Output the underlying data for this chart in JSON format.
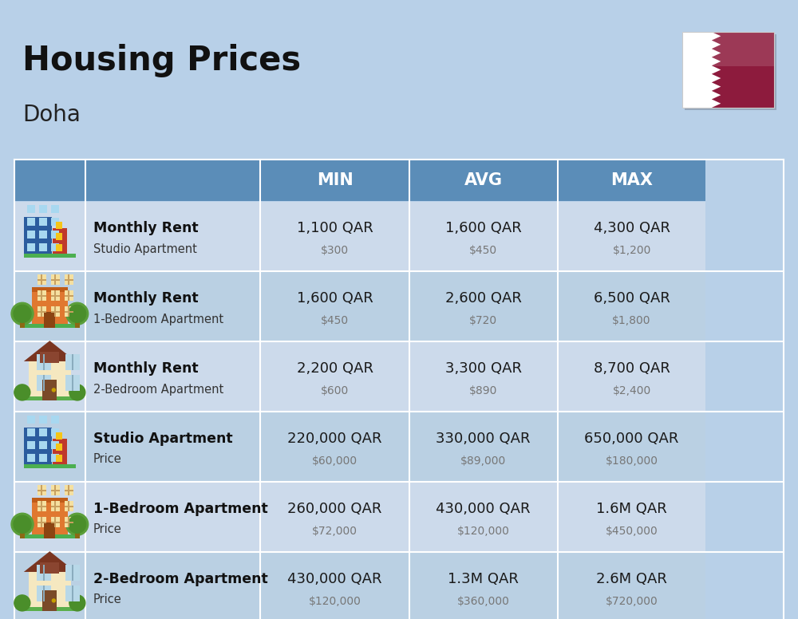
{
  "title": "Housing Prices",
  "subtitle": "Doha",
  "bg_color": "#b8d0e8",
  "header_bg": "#5b8db8",
  "header_text": "#ffffff",
  "row_colors": [
    "#ccdaeb",
    "#bad0e3"
  ],
  "col_header": [
    "",
    "",
    "MIN",
    "AVG",
    "MAX"
  ],
  "rows": [
    {
      "icon": "office_blue",
      "label_bold": "Monthly Rent",
      "label_sub": "Studio Apartment",
      "min_qar": "1,100 QAR",
      "min_usd": "$300",
      "avg_qar": "1,600 QAR",
      "avg_usd": "$450",
      "max_qar": "4,300 QAR",
      "max_usd": "$1,200"
    },
    {
      "icon": "apartment_orange",
      "label_bold": "Monthly Rent",
      "label_sub": "1-Bedroom Apartment",
      "min_qar": "1,600 QAR",
      "min_usd": "$450",
      "avg_qar": "2,600 QAR",
      "avg_usd": "$720",
      "max_qar": "6,500 QAR",
      "max_usd": "$1,800"
    },
    {
      "icon": "house_beige",
      "label_bold": "Monthly Rent",
      "label_sub": "2-Bedroom Apartment",
      "min_qar": "2,200 QAR",
      "min_usd": "$600",
      "avg_qar": "3,300 QAR",
      "avg_usd": "$890",
      "max_qar": "8,700 QAR",
      "max_usd": "$2,400"
    },
    {
      "icon": "office_blue",
      "label_bold": "Studio Apartment",
      "label_sub": "Price",
      "min_qar": "220,000 QAR",
      "min_usd": "$60,000",
      "avg_qar": "330,000 QAR",
      "avg_usd": "$89,000",
      "max_qar": "650,000 QAR",
      "max_usd": "$180,000"
    },
    {
      "icon": "apartment_orange",
      "label_bold": "1-Bedroom Apartment",
      "label_sub": "Price",
      "min_qar": "260,000 QAR",
      "min_usd": "$72,000",
      "avg_qar": "430,000 QAR",
      "avg_usd": "$120,000",
      "max_qar": "1.6M QAR",
      "max_usd": "$450,000"
    },
    {
      "icon": "house_beige",
      "label_bold": "2-Bedroom Apartment",
      "label_sub": "Price",
      "min_qar": "430,000 QAR",
      "min_usd": "$120,000",
      "avg_qar": "1.3M QAR",
      "avg_usd": "$360,000",
      "max_qar": "2.6M QAR",
      "max_usd": "$720,000"
    }
  ]
}
